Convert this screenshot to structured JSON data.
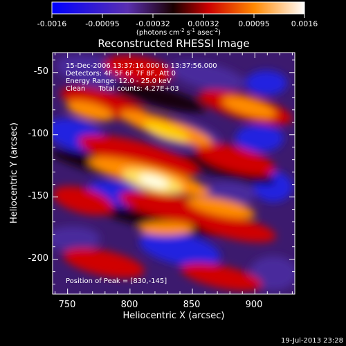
{
  "colorbar": {
    "tick_labels": [
      "-0.0016",
      "-0.00095",
      "-0.00032",
      "0.00032",
      "0.00095",
      "0.0016"
    ],
    "unit_prefix": "(photons cm",
    "unit_exp1": "-2",
    "unit_mid": " s",
    "unit_exp2": "-1",
    "unit_mid2": " asec",
    "unit_exp3": "-2",
    "unit_suffix": ")",
    "colors": [
      "#0000ff",
      "#5f2fb0",
      "#1a0000",
      "#cc0000",
      "#ff8800",
      "#ffffff"
    ]
  },
  "footer": {
    "timestamp": "19-Jul-2013 23:28"
  },
  "chart_data": {
    "type": "heatmap",
    "title": "Reconstructed RHESSI Image",
    "xlabel": "Heliocentric X (arcsec)",
    "ylabel": "Heliocentric Y (arcsec)",
    "xlim": [
      738,
      932
    ],
    "ylim": [
      -228,
      -34
    ],
    "xticks": [
      750,
      800,
      850,
      900
    ],
    "yticks": [
      -50,
      -100,
      -150,
      -200
    ],
    "annotations": [
      "15-Dec-2006 13:37:16.000 to 13:37:56.000",
      "Detectors: 4F 5F 6F 7F 8F, Att 0",
      "Energy Range: 12.0 - 25.0 keV",
      "Clean      Total counts: 4.27E+03"
    ],
    "peak_label": "Position of Peak = [830,-145]",
    "peak": [
      830,
      -145
    ]
  }
}
